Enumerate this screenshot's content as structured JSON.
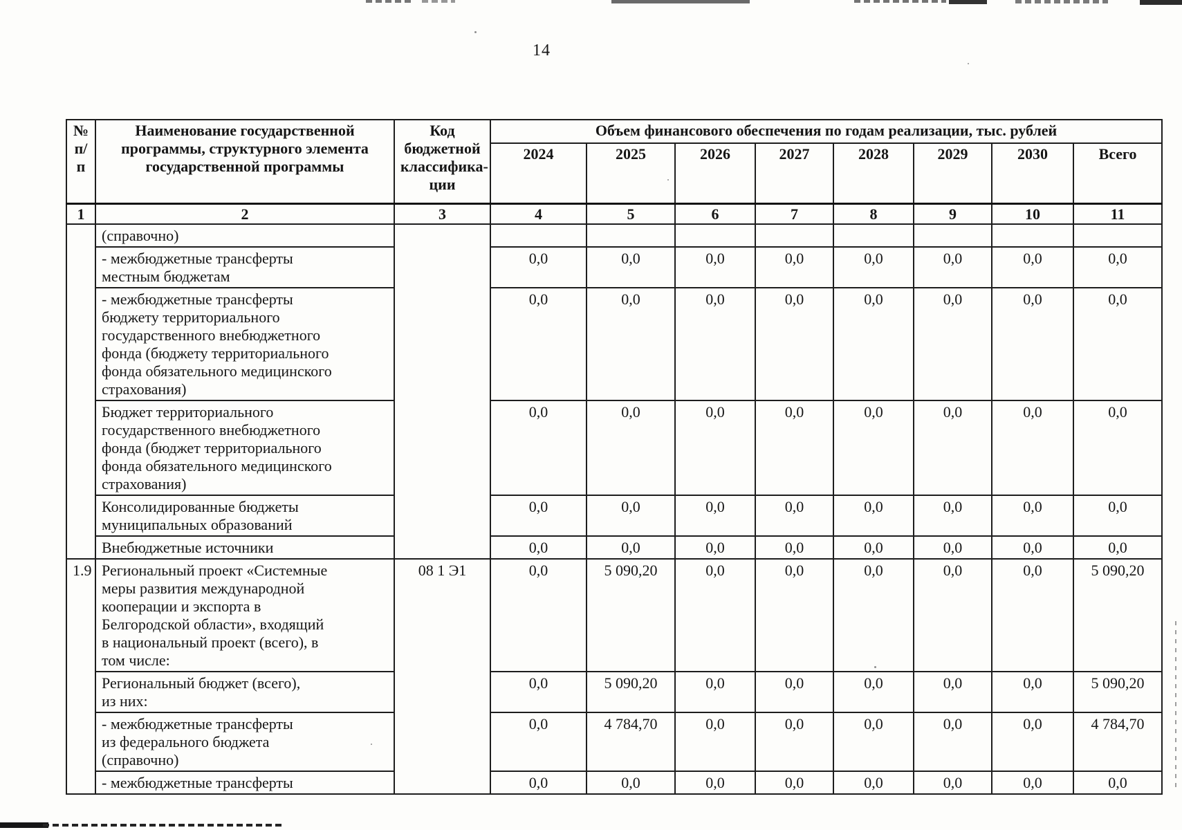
{
  "page_number": "14",
  "table": {
    "header": {
      "num": "№\nп/п",
      "name": "Наименование государственной\nпрограммы, структурного элемента\nгосударственной программы",
      "code": "Код\nбюджетной\nклассифика-\nции",
      "volume": "Объем финансового обеспечения по годам реализации, тыс. рублей",
      "years": [
        "2024",
        "2025",
        "2026",
        "2027",
        "2028",
        "2029",
        "2030"
      ],
      "total": "Всего",
      "index": [
        "1",
        "2",
        "3",
        "4",
        "5",
        "6",
        "7",
        "8",
        "9",
        "10",
        "11"
      ]
    },
    "rows": [
      {
        "num": "",
        "num_span": 6,
        "code": "",
        "code_span": 6,
        "name": "(справочно)",
        "values": [
          "",
          "",
          "",
          "",
          "",
          "",
          "",
          ""
        ]
      },
      {
        "name": "- межбюджетные трансферты\nместным бюджетам",
        "values": [
          "0,0",
          "0,0",
          "0,0",
          "0,0",
          "0,0",
          "0,0",
          "0,0",
          "0,0"
        ]
      },
      {
        "name": "- межбюджетные трансферты\nбюджету территориального\nгосударственного внебюджетного\nфонда (бюджету территориального\nфонда обязательного медицинского\nстрахования)",
        "values": [
          "0,0",
          "0,0",
          "0,0",
          "0,0",
          "0,0",
          "0,0",
          "0,0",
          "0,0"
        ]
      },
      {
        "name": "Бюджет территориального\nгосударственного внебюджетного\nфонда (бюджет территориального\nфонда обязательного медицинского\nстрахования)",
        "values": [
          "0,0",
          "0,0",
          "0,0",
          "0,0",
          "0,0",
          "0,0",
          "0,0",
          "0,0"
        ]
      },
      {
        "name": "Консолидированные бюджеты\nмуниципальных образований",
        "values": [
          "0,0",
          "0,0",
          "0,0",
          "0,0",
          "0,0",
          "0,0",
          "0,0",
          "0,0"
        ]
      },
      {
        "name": "Внебюджетные источники",
        "values": [
          "0,0",
          "0,0",
          "0,0",
          "0,0",
          "0,0",
          "0,0",
          "0,0",
          "0,0"
        ]
      },
      {
        "num": "1.9",
        "num_span": 4,
        "code": "08 1 Э1",
        "code_span": 4,
        "name": "Региональный проект «Системные\nмеры развития международной\nкооперации и экспорта в\nБелгородской области», входящий\nв национальный проект (всего), в\nтом числе:",
        "values": [
          "0,0",
          "5 090,20",
          "0,0",
          "0,0",
          "0,0",
          "0,0",
          "0,0",
          "5 090,20"
        ]
      },
      {
        "name": "Региональный бюджет (всего),\nиз них:",
        "values": [
          "0,0",
          "5 090,20",
          "0,0",
          "0,0",
          "0,0",
          "0,0",
          "0,0",
          "5 090,20"
        ]
      },
      {
        "name": "- межбюджетные трансферты\nиз федерального бюджета\n(справочно)",
        "values": [
          "0,0",
          "4 784,70",
          "0,0",
          "0,0",
          "0,0",
          "0,0",
          "0,0",
          "4 784,70"
        ]
      },
      {
        "name": "- межбюджетные трансферты",
        "values": [
          "0,0",
          "0,0",
          "0,0",
          "0,0",
          "0,0",
          "0,0",
          "0,0",
          "0,0"
        ]
      }
    ]
  }
}
